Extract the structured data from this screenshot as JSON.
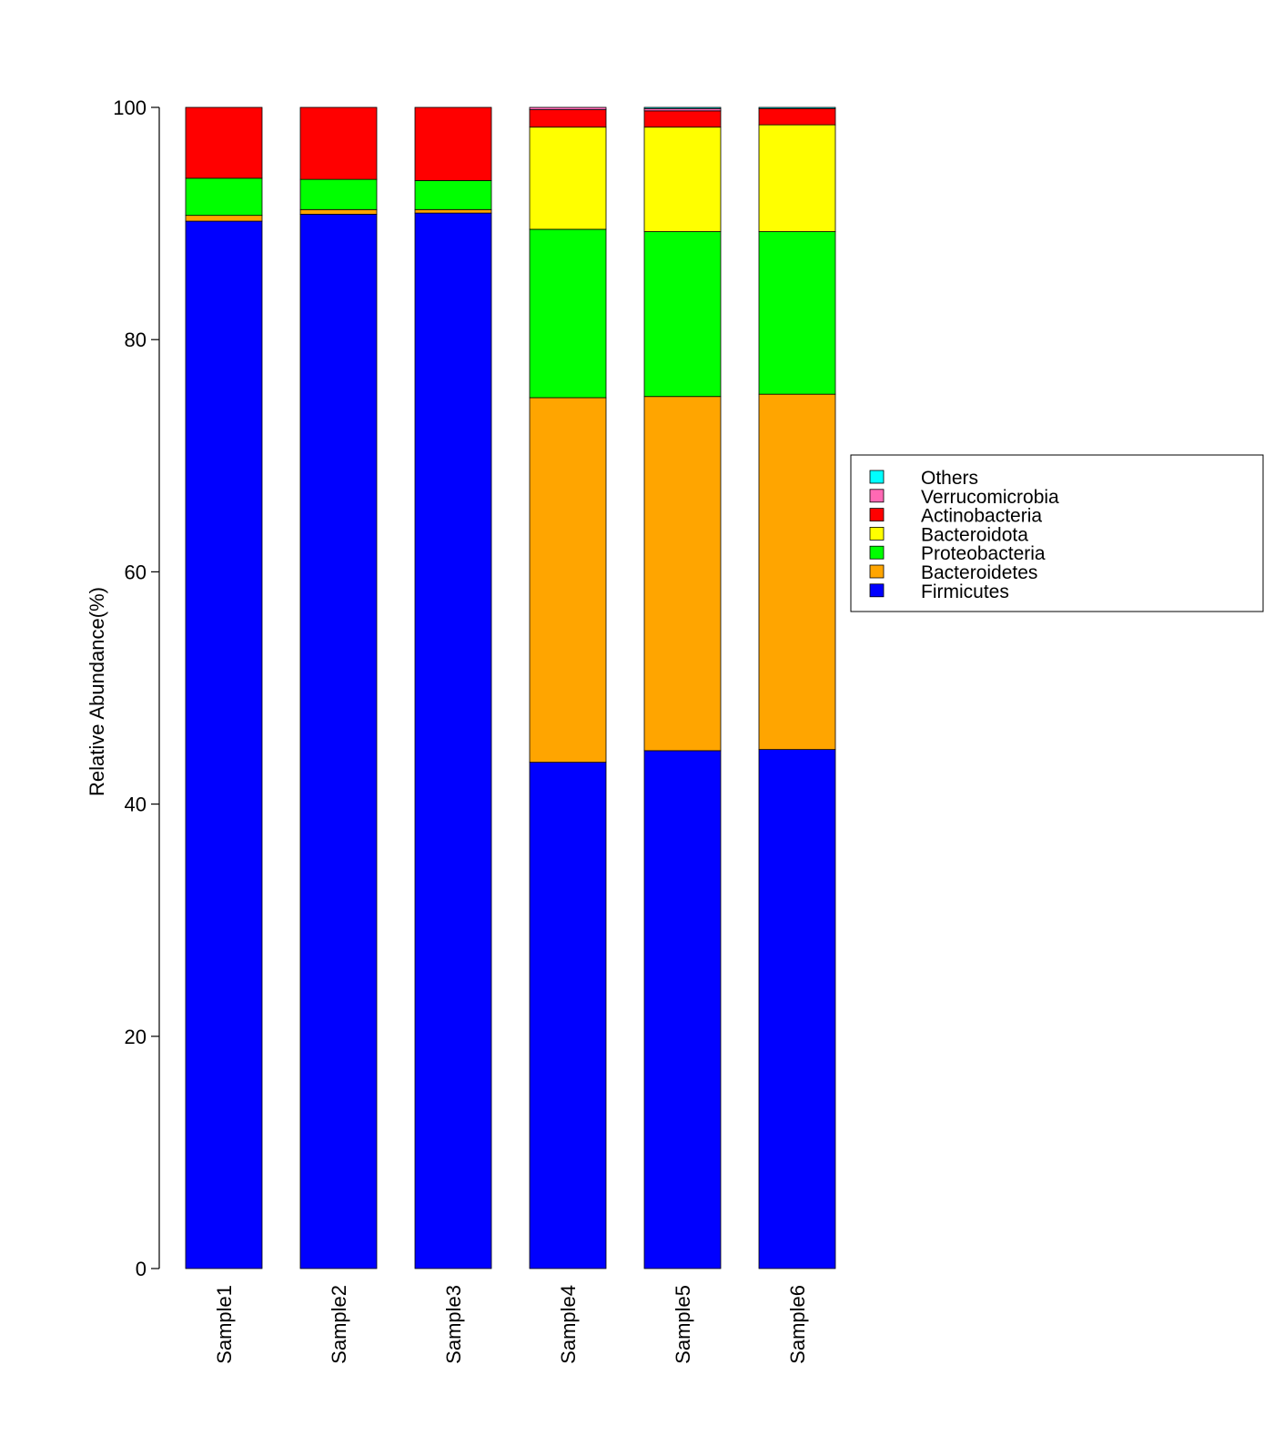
{
  "chart_data": {
    "type": "bar",
    "stacked": true,
    "categories": [
      "Sample1",
      "Sample2",
      "Sample3",
      "Sample4",
      "Sample5",
      "Sample6"
    ],
    "ylabel": "Relative Abundance(%)",
    "ylim": [
      0,
      100
    ],
    "yticks": [
      0,
      20,
      40,
      60,
      80,
      100
    ],
    "legend_position": "right",
    "series": [
      {
        "name": "Firmicutes",
        "color": "#0000FF",
        "values": [
          90.2,
          90.8,
          90.9,
          43.6,
          44.6,
          44.7
        ]
      },
      {
        "name": "Bacteroidetes",
        "color": "#FFA500",
        "values": [
          0.5,
          0.4,
          0.3,
          31.4,
          30.5,
          30.6
        ]
      },
      {
        "name": "Proteobacteria",
        "color": "#00FF00",
        "values": [
          3.2,
          2.6,
          2.5,
          14.5,
          14.2,
          14.0
        ]
      },
      {
        "name": "Bacteroidota",
        "color": "#FFFF00",
        "values": [
          0.0,
          0.0,
          0.0,
          8.8,
          9.0,
          9.2
        ]
      },
      {
        "name": "Actinobacteria",
        "color": "#FF0000",
        "values": [
          6.1,
          6.2,
          6.3,
          1.5,
          1.4,
          1.4
        ]
      },
      {
        "name": "Verrucomicrobia",
        "color": "#FF69B4",
        "values": [
          0.0,
          0.0,
          0.0,
          0.2,
          0.2,
          0.0
        ]
      },
      {
        "name": "Others",
        "color": "#00FFFF",
        "values": [
          0.0,
          0.0,
          0.0,
          0.0,
          0.1,
          0.1
        ]
      }
    ]
  }
}
